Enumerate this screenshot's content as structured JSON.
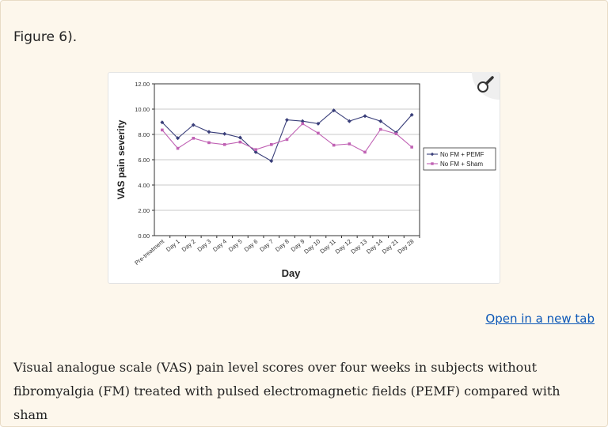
{
  "figure_heading": "Figure 6).",
  "open_link": "Open in a new tab",
  "caption": "Visual analogue scale (VAS) pain level scores over four weeks in subjects without fibromyalgia (FM) treated with pulsed electromagnetic fields (PEMF) compared with sham",
  "icons": {
    "zoom": "magnifier-icon"
  },
  "colors": {
    "background": "#fdf7ec",
    "series_pemf": "#3a3f7a",
    "series_sham": "#c062b4",
    "link": "#0b57b7"
  },
  "chart_data": {
    "type": "line",
    "title": "",
    "xlabel": "Day",
    "ylabel": "VAS pain severity",
    "ylim": [
      0,
      12
    ],
    "yticks": [
      "0.00",
      "2.00",
      "4.00",
      "6.00",
      "8.00",
      "10.00",
      "12.00"
    ],
    "grid": true,
    "legend_position": "right",
    "categories": [
      "Pre-treatment",
      "Day 1",
      "Day 2",
      "Day 3",
      "Day 4",
      "Day 5",
      "Day 6",
      "Day 7",
      "Day 8",
      "Day 9",
      "Day 10",
      "Day 11",
      "Day 12",
      "Day 13",
      "Day 14",
      "Day 21",
      "Day 28"
    ],
    "series": [
      {
        "name": "No FM + PEMF",
        "color": "#3a3f7a",
        "marker": "diamond",
        "values": [
          8.95,
          7.7,
          8.75,
          8.2,
          8.05,
          7.75,
          6.6,
          5.9,
          9.15,
          9.05,
          8.85,
          9.9,
          9.05,
          9.45,
          9.05,
          8.15,
          9.55
        ]
      },
      {
        "name": "No FM + Sham",
        "color": "#c062b4",
        "marker": "square",
        "values": [
          8.35,
          6.9,
          7.7,
          7.35,
          7.2,
          7.4,
          6.8,
          7.2,
          7.6,
          8.85,
          8.1,
          7.15,
          7.25,
          6.6,
          8.4,
          8.05,
          7.0
        ]
      }
    ]
  }
}
